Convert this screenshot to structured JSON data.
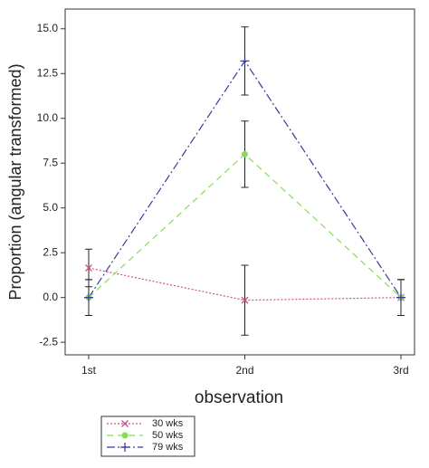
{
  "chart_data": {
    "type": "line",
    "x_label": "observation",
    "y_label": "Proportion (angular transformed)",
    "categories": [
      "1st",
      "2nd",
      "3rd"
    ],
    "series": [
      {
        "name": "30 wks",
        "color": "#d0508a",
        "dash": "2,2",
        "marker": "x",
        "values": [
          1.65,
          -0.15,
          0.0
        ],
        "errors": [
          1.05,
          1.95,
          1.0
        ]
      },
      {
        "name": "50 wks",
        "color": "#86dc5a",
        "dash": "7,5",
        "marker": "circle",
        "values": [
          0.0,
          8.0,
          0.0
        ],
        "errors": [
          1.0,
          1.85,
          1.0
        ]
      },
      {
        "name": "79 wks",
        "color": "#3a3a9e",
        "dash": "9,3,2,3",
        "marker": "plus",
        "values": [
          0.0,
          13.2,
          0.0
        ],
        "errors": [
          1.0,
          1.9,
          1.0
        ]
      }
    ],
    "ylim": [
      -3.2,
      16.1
    ],
    "yticks": [
      {
        "value": -2.5,
        "label": "-2.5"
      },
      {
        "value": 0,
        "label": "0.0"
      },
      {
        "value": 2.5,
        "label": "2.5"
      },
      {
        "value": 5,
        "label": "5.0"
      },
      {
        "value": 7.5,
        "label": "7.5"
      },
      {
        "value": 10,
        "label": "10.0"
      },
      {
        "value": 12.5,
        "label": "12.5"
      },
      {
        "value": 15,
        "label": "15.0"
      }
    ],
    "legend": "below-left"
  }
}
